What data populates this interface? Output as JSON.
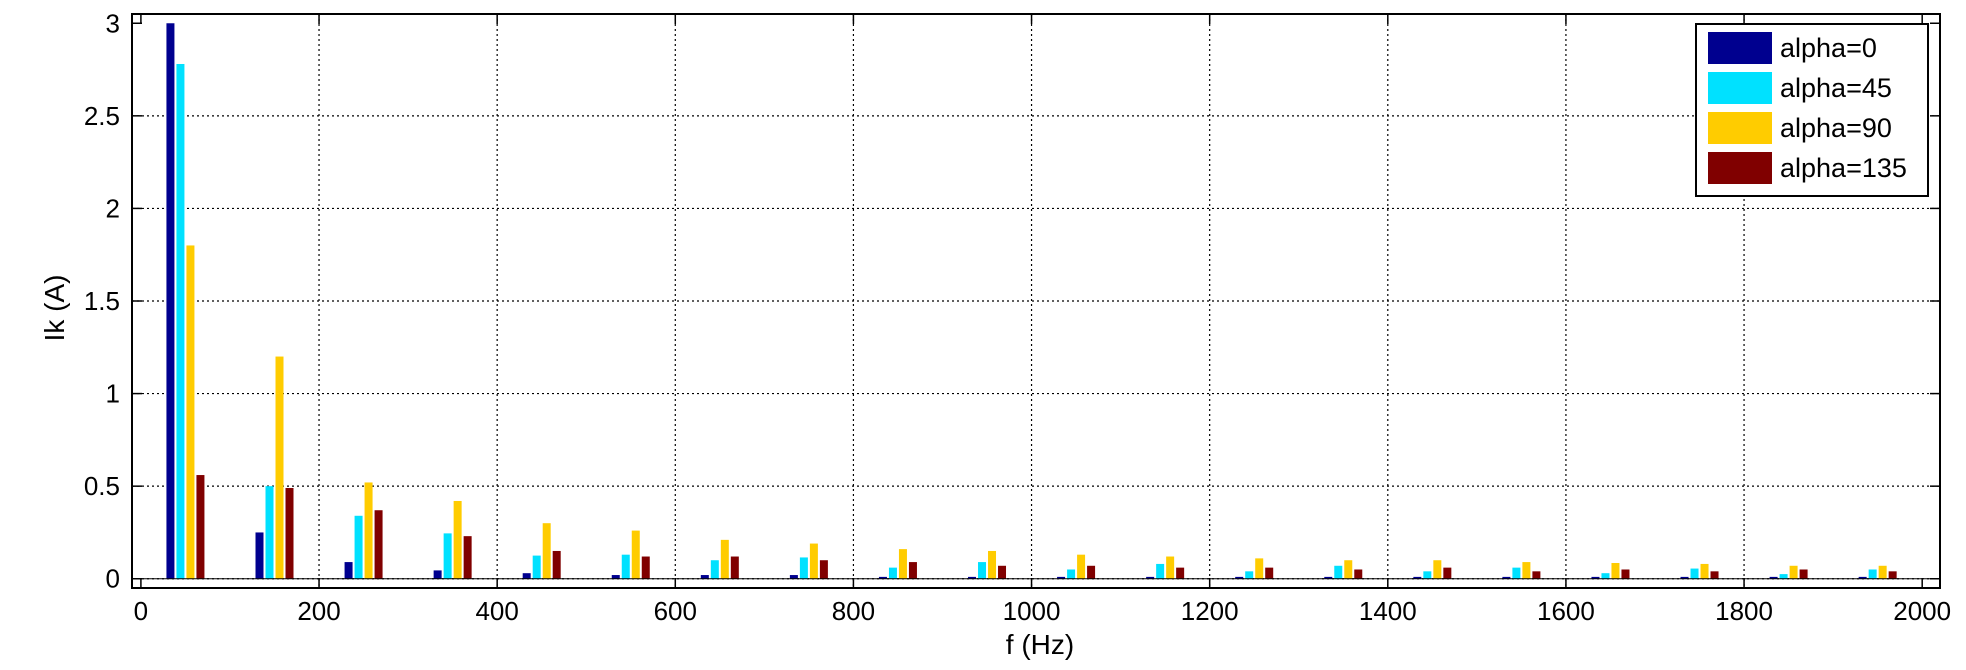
{
  "chart_data": {
    "type": "bar",
    "title": "",
    "xlabel": "f (Hz)",
    "ylabel": "Ik (A)",
    "xlim": [
      -10,
      2020
    ],
    "ylim": [
      -0.05,
      3.05
    ],
    "xticks": [
      "0",
      "200",
      "400",
      "600",
      "800",
      "1000",
      "1200",
      "1400",
      "1600",
      "1800",
      "2000"
    ],
    "yticks": [
      "0",
      "0.5",
      "1",
      "1.5",
      "2",
      "2.5",
      "3"
    ],
    "grid": true,
    "legend_position": "top-right",
    "categories": [
      50,
      150,
      250,
      350,
      450,
      550,
      650,
      750,
      850,
      950,
      1050,
      1150,
      1250,
      1350,
      1450,
      1550,
      1650,
      1750,
      1850,
      1950
    ],
    "x_offsets": [
      -100,
      -50,
      0,
      50
    ],
    "series": [
      {
        "name": "alpha=0",
        "color": "#00008F",
        "values": [
          3.0,
          0.25,
          0.09,
          0.045,
          0.03,
          0.02,
          0.02,
          0.02,
          0.01,
          0.01,
          0.01,
          0.01,
          0.01,
          0.01,
          0.01,
          0.01,
          0.01,
          0.01,
          0.01,
          0.01
        ]
      },
      {
        "name": "alpha=45",
        "color": "#00E1FF",
        "values": [
          2.78,
          0.5,
          0.34,
          0.245,
          0.125,
          0.13,
          0.1,
          0.115,
          0.06,
          0.09,
          0.05,
          0.08,
          0.04,
          0.07,
          0.04,
          0.06,
          0.03,
          0.055,
          0.025,
          0.05
        ]
      },
      {
        "name": "alpha=90",
        "color": "#FFCC00",
        "values": [
          1.8,
          1.2,
          0.52,
          0.42,
          0.3,
          0.26,
          0.21,
          0.19,
          0.16,
          0.15,
          0.13,
          0.12,
          0.11,
          0.1,
          0.1,
          0.09,
          0.085,
          0.08,
          0.07,
          0.07
        ]
      },
      {
        "name": "alpha=135",
        "color": "#800000",
        "values": [
          0.56,
          0.49,
          0.37,
          0.23,
          0.15,
          0.12,
          0.12,
          0.1,
          0.09,
          0.07,
          0.07,
          0.06,
          0.06,
          0.05,
          0.06,
          0.04,
          0.05,
          0.04,
          0.05,
          0.04
        ]
      }
    ]
  }
}
